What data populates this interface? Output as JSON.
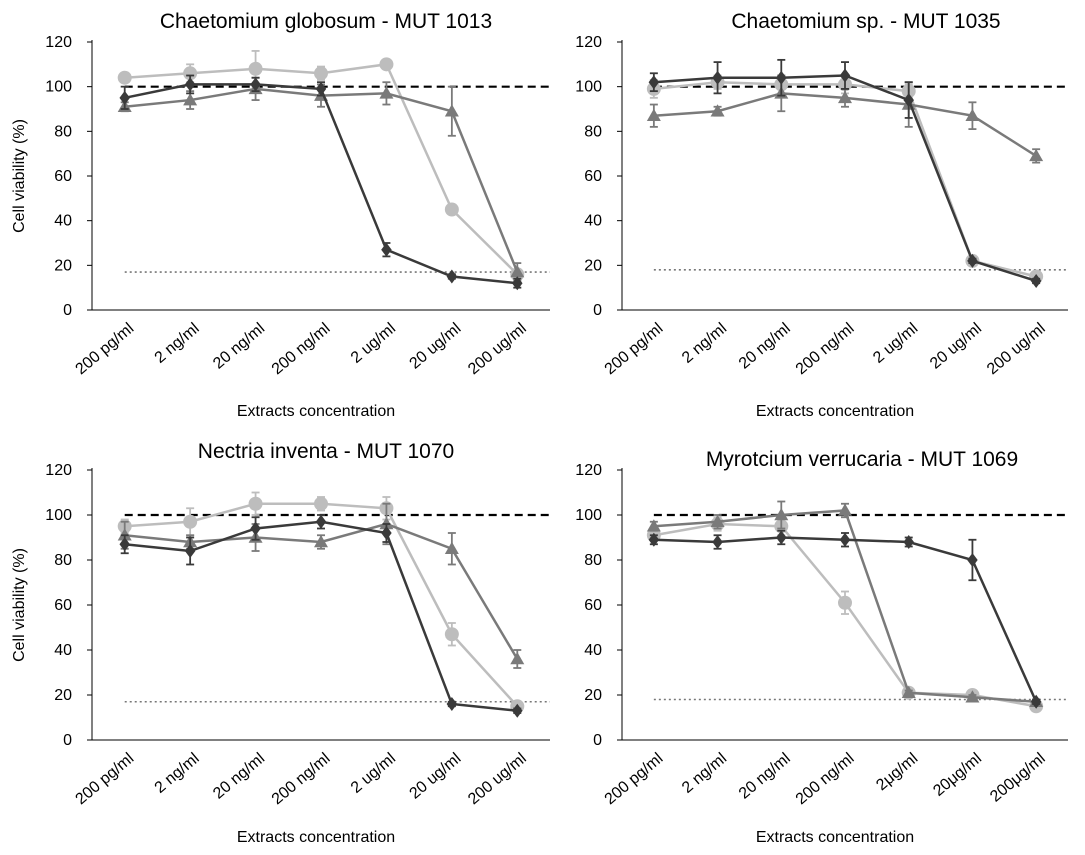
{
  "chart_data": [
    {
      "type": "line",
      "title": "Chaetomium globosum - MUT 1013",
      "xlabel": "Extracts concentration",
      "ylabel": "Cell viability (%)",
      "ylim": [
        0,
        120
      ],
      "yticks": [
        "0",
        "20",
        "40",
        "60",
        "80",
        "100",
        "120"
      ],
      "categories": [
        "200 pg/ml",
        "2 ng/ml",
        "20 ng/ml",
        "200 ng/ml",
        "2 ug/ml",
        "20 ug/ml",
        "200 ug/ml"
      ],
      "reference_lines": [
        {
          "y": 100,
          "style": "dashed"
        },
        {
          "y": 17,
          "style": "dotted"
        }
      ],
      "series": [
        {
          "marker": "diamond",
          "color": "#3a3a3a",
          "values": [
            95,
            101,
            101,
            99,
            27,
            15,
            12
          ],
          "errors": [
            5,
            4,
            3,
            3,
            3,
            1,
            2
          ]
        },
        {
          "marker": "circle",
          "color": "#bdbdbd",
          "values": [
            104,
            106,
            108,
            106,
            110,
            45,
            16
          ],
          "errors": [
            2,
            4,
            8,
            3,
            2,
            2,
            2
          ]
        },
        {
          "marker": "triangle",
          "color": "#7a7a7a",
          "values": [
            91,
            94,
            99,
            96,
            97,
            89,
            17
          ],
          "errors": [
            2,
            4,
            5,
            5,
            5,
            11,
            4
          ]
        }
      ]
    },
    {
      "type": "line",
      "title": "Chaetomium sp. - MUT 1035",
      "xlabel": "Extracts concentration",
      "ylabel": "",
      "ylim": [
        0,
        120
      ],
      "yticks": [
        "0",
        "20",
        "40",
        "60",
        "80",
        "100",
        "120"
      ],
      "categories": [
        "200 pg/ml",
        "2 ng/ml",
        "20 ng/ml",
        "200 ng/ml",
        "2 ug/ml",
        "20 ug/ml",
        "200 ug/ml"
      ],
      "reference_lines": [
        {
          "y": 100,
          "style": "dashed"
        },
        {
          "y": 18,
          "style": "dotted"
        }
      ],
      "series": [
        {
          "marker": "diamond",
          "color": "#3a3a3a",
          "values": [
            102,
            104,
            104,
            105,
            94,
            22,
            13
          ],
          "errors": [
            4,
            7,
            8,
            6,
            8,
            1,
            1
          ]
        },
        {
          "marker": "circle",
          "color": "#bdbdbd",
          "values": [
            99,
            102,
            101,
            101,
            98,
            22,
            15
          ],
          "errors": [
            4,
            3,
            4,
            4,
            3,
            1,
            1
          ]
        },
        {
          "marker": "triangle",
          "color": "#7a7a7a",
          "values": [
            87,
            89,
            97,
            95,
            92,
            87,
            69
          ],
          "errors": [
            5,
            2,
            8,
            4,
            10,
            6,
            3
          ]
        }
      ]
    },
    {
      "type": "line",
      "title": "Nectria inventa - MUT 1070",
      "xlabel": "Extracts concentration",
      "ylabel": "Cell viability (%)",
      "ylim": [
        0,
        120
      ],
      "yticks": [
        "0",
        "20",
        "40",
        "60",
        "80",
        "100",
        "120"
      ],
      "categories": [
        "200 pg/ml",
        "2 ng/ml",
        "20 ng/ml",
        "200 ng/ml",
        "2 ug/ml",
        "20 ug/ml",
        "200 ug/ml"
      ],
      "reference_lines": [
        {
          "y": 100,
          "style": "dashed"
        },
        {
          "y": 17,
          "style": "dotted"
        }
      ],
      "series": [
        {
          "marker": "diamond",
          "color": "#3a3a3a",
          "values": [
            87,
            84,
            94,
            97,
            92,
            16,
            13
          ],
          "errors": [
            4,
            6,
            5,
            3,
            4,
            1,
            1
          ]
        },
        {
          "marker": "circle",
          "color": "#bdbdbd",
          "values": [
            95,
            97,
            105,
            105,
            103,
            47,
            15
          ],
          "errors": [
            3,
            6,
            5,
            3,
            5,
            5,
            2
          ]
        },
        {
          "marker": "triangle",
          "color": "#7a7a7a",
          "values": [
            91,
            88,
            90,
            88,
            96,
            85,
            36
          ],
          "errors": [
            6,
            3,
            6,
            3,
            9,
            7,
            4
          ]
        }
      ]
    },
    {
      "type": "line",
      "title": "Myrotcium verrucaria - MUT 1069",
      "xlabel": "Extracts concentration",
      "ylabel": "",
      "ylim": [
        0,
        120
      ],
      "yticks": [
        "0",
        "20",
        "40",
        "60",
        "80",
        "100",
        "120"
      ],
      "categories": [
        "200 pg/ml",
        "2 ng/ml",
        "20 ng/ml",
        "200 ng/ml",
        "2μg/ml",
        "20μg/ml",
        "200μg/ml"
      ],
      "reference_lines": [
        {
          "y": 100,
          "style": "dashed"
        },
        {
          "y": 18,
          "style": "dotted"
        }
      ],
      "series": [
        {
          "marker": "diamond",
          "color": "#3a3a3a",
          "values": [
            89,
            88,
            90,
            89,
            88,
            80,
            17
          ],
          "errors": [
            2,
            3,
            3,
            3,
            2,
            9,
            1
          ]
        },
        {
          "marker": "circle",
          "color": "#bdbdbd",
          "values": [
            91,
            96,
            95,
            61,
            21,
            20,
            15
          ],
          "errors": [
            2,
            3,
            4,
            5,
            1,
            1,
            1
          ]
        },
        {
          "marker": "triangle",
          "color": "#7a7a7a",
          "values": [
            95,
            97,
            100,
            102,
            21,
            19,
            17
          ],
          "errors": [
            2,
            3,
            6,
            3,
            1,
            1,
            1
          ]
        }
      ]
    }
  ]
}
